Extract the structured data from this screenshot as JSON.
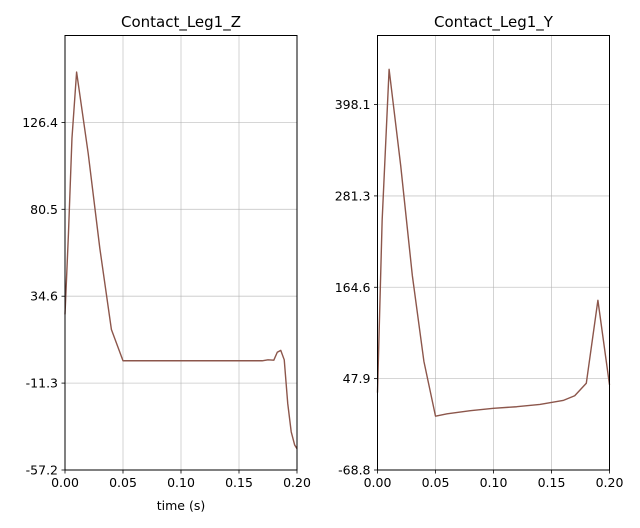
{
  "chart_data": [
    {
      "type": "line",
      "title": "Contact_Leg1_Z",
      "xlabel": "time (s)",
      "ylabel": "",
      "xlim": [
        0.0,
        0.2
      ],
      "ylim": [
        -57.2,
        172.3
      ],
      "xticks": [
        0.0,
        0.05,
        0.1,
        0.15,
        0.2
      ],
      "xtick_labels": [
        "0.00",
        "0.05",
        "0.10",
        "0.15",
        "0.20"
      ],
      "yticks": [
        -57.2,
        -11.3,
        34.6,
        80.5,
        126.4
      ],
      "ytick_labels": [
        "-57.2",
        "-11.3",
        "34.6",
        "80.5",
        "126.4"
      ],
      "grid": true,
      "series": [
        {
          "color": "#8c564b",
          "x": [
            0.0,
            0.003,
            0.006,
            0.01,
            0.02,
            0.03,
            0.04,
            0.05,
            0.06,
            0.08,
            0.1,
            0.12,
            0.14,
            0.16,
            0.17,
            0.175,
            0.18,
            0.183,
            0.186,
            0.189,
            0.192,
            0.195,
            0.198,
            0.2
          ],
          "y": [
            25,
            68,
            118,
            153,
            110,
            60,
            17,
            0.5,
            0.5,
            0.5,
            0.5,
            0.5,
            0.5,
            0.5,
            0.5,
            1,
            0.8,
            5,
            6,
            1,
            -22,
            -37,
            -44,
            -46
          ]
        }
      ]
    },
    {
      "type": "line",
      "title": "Contact_Leg1_Y",
      "xlabel": "",
      "ylabel": "",
      "xlim": [
        0.0,
        0.2
      ],
      "ylim": [
        -68.8,
        486.2
      ],
      "xticks": [
        0.0,
        0.05,
        0.1,
        0.15,
        0.2
      ],
      "xtick_labels": [
        "0.00",
        "0.05",
        "0.10",
        "0.15",
        "0.20"
      ],
      "yticks": [
        -68.8,
        47.9,
        164.6,
        281.3,
        398.1
      ],
      "ytick_labels": [
        "-68.8",
        "47.9",
        "164.6",
        "281.3",
        "398.1"
      ],
      "grid": true,
      "series": [
        {
          "color": "#8c564b",
          "x": [
            0.0,
            0.004,
            0.01,
            0.02,
            0.03,
            0.04,
            0.05,
            0.06,
            0.08,
            0.1,
            0.12,
            0.14,
            0.16,
            0.17,
            0.18,
            0.19,
            0.2
          ],
          "y": [
            30,
            250,
            443,
            320,
            180,
            70,
            0,
            3,
            7,
            10,
            12,
            15,
            20,
            26,
            42,
            148,
            40
          ]
        }
      ]
    }
  ]
}
